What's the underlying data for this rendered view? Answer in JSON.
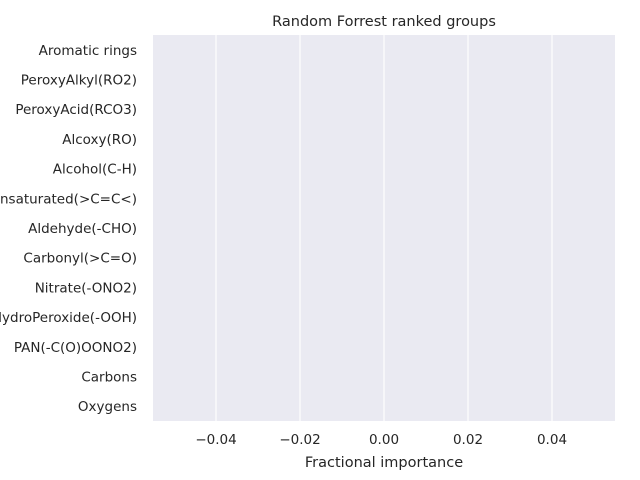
{
  "chart_data": {
    "type": "bar",
    "orientation": "horizontal",
    "title": "Random Forrest ranked groups",
    "xlabel": "Fractional importance",
    "ylabel": "",
    "categories": [
      "Aromatic rings",
      "PeroxyAlkyl(RO2)",
      "PeroxyAcid(RCO3)",
      "Alcoxy(RO)",
      "Alcohol(C-H)",
      "Unsaturated(>C=C<)",
      "Aldehyde(-CHO)",
      "Carbonyl(>C=O)",
      "Nitrate(-ONO2)",
      "HydroPeroxide(-OOH)",
      "PAN(-C(O)OONO2)",
      "Carbons",
      "Oxygens"
    ],
    "values": [
      0,
      0,
      0,
      0,
      0,
      0,
      0,
      0,
      0,
      0,
      0,
      0,
      0
    ],
    "xlim": [
      -0.055,
      0.055
    ],
    "xticks": [
      "−0.04",
      "−0.02",
      "0.00",
      "0.02",
      "0.04"
    ],
    "xtick_values": [
      -0.04,
      -0.02,
      0.0,
      0.02,
      0.04
    ],
    "grid": true,
    "style": {
      "background": "#eaeaf2",
      "gridline": "#ffffff"
    }
  }
}
